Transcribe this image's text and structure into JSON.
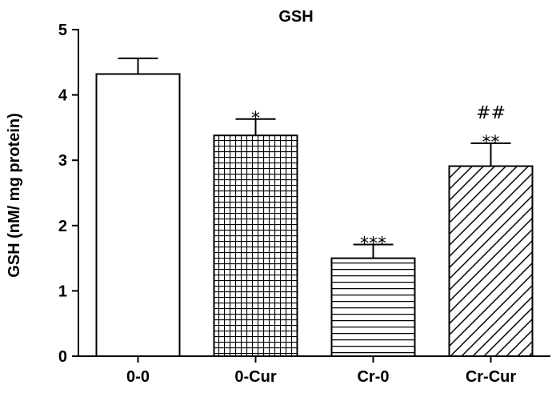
{
  "chart_data": {
    "type": "bar",
    "title": "GSH",
    "xlabel": "",
    "ylabel": "GSH (nM/ mg protein)",
    "ylim": [
      0,
      5
    ],
    "yticks": [
      "0",
      "1",
      "2",
      "3",
      "4",
      "5"
    ],
    "categories": [
      "0-0",
      "0-Cur",
      "Cr-0",
      "Cr-Cur"
    ],
    "values": [
      4.32,
      3.38,
      1.5,
      2.91
    ],
    "errors": [
      0.24,
      0.25,
      0.21,
      0.35
    ],
    "patterns": [
      "none",
      "grid",
      "horizontal-lines",
      "diagonal-lines"
    ],
    "annotations": [
      [],
      [
        "*"
      ],
      [
        "***"
      ],
      [
        "**",
        "##"
      ]
    ],
    "grid": false,
    "legend": "none"
  }
}
